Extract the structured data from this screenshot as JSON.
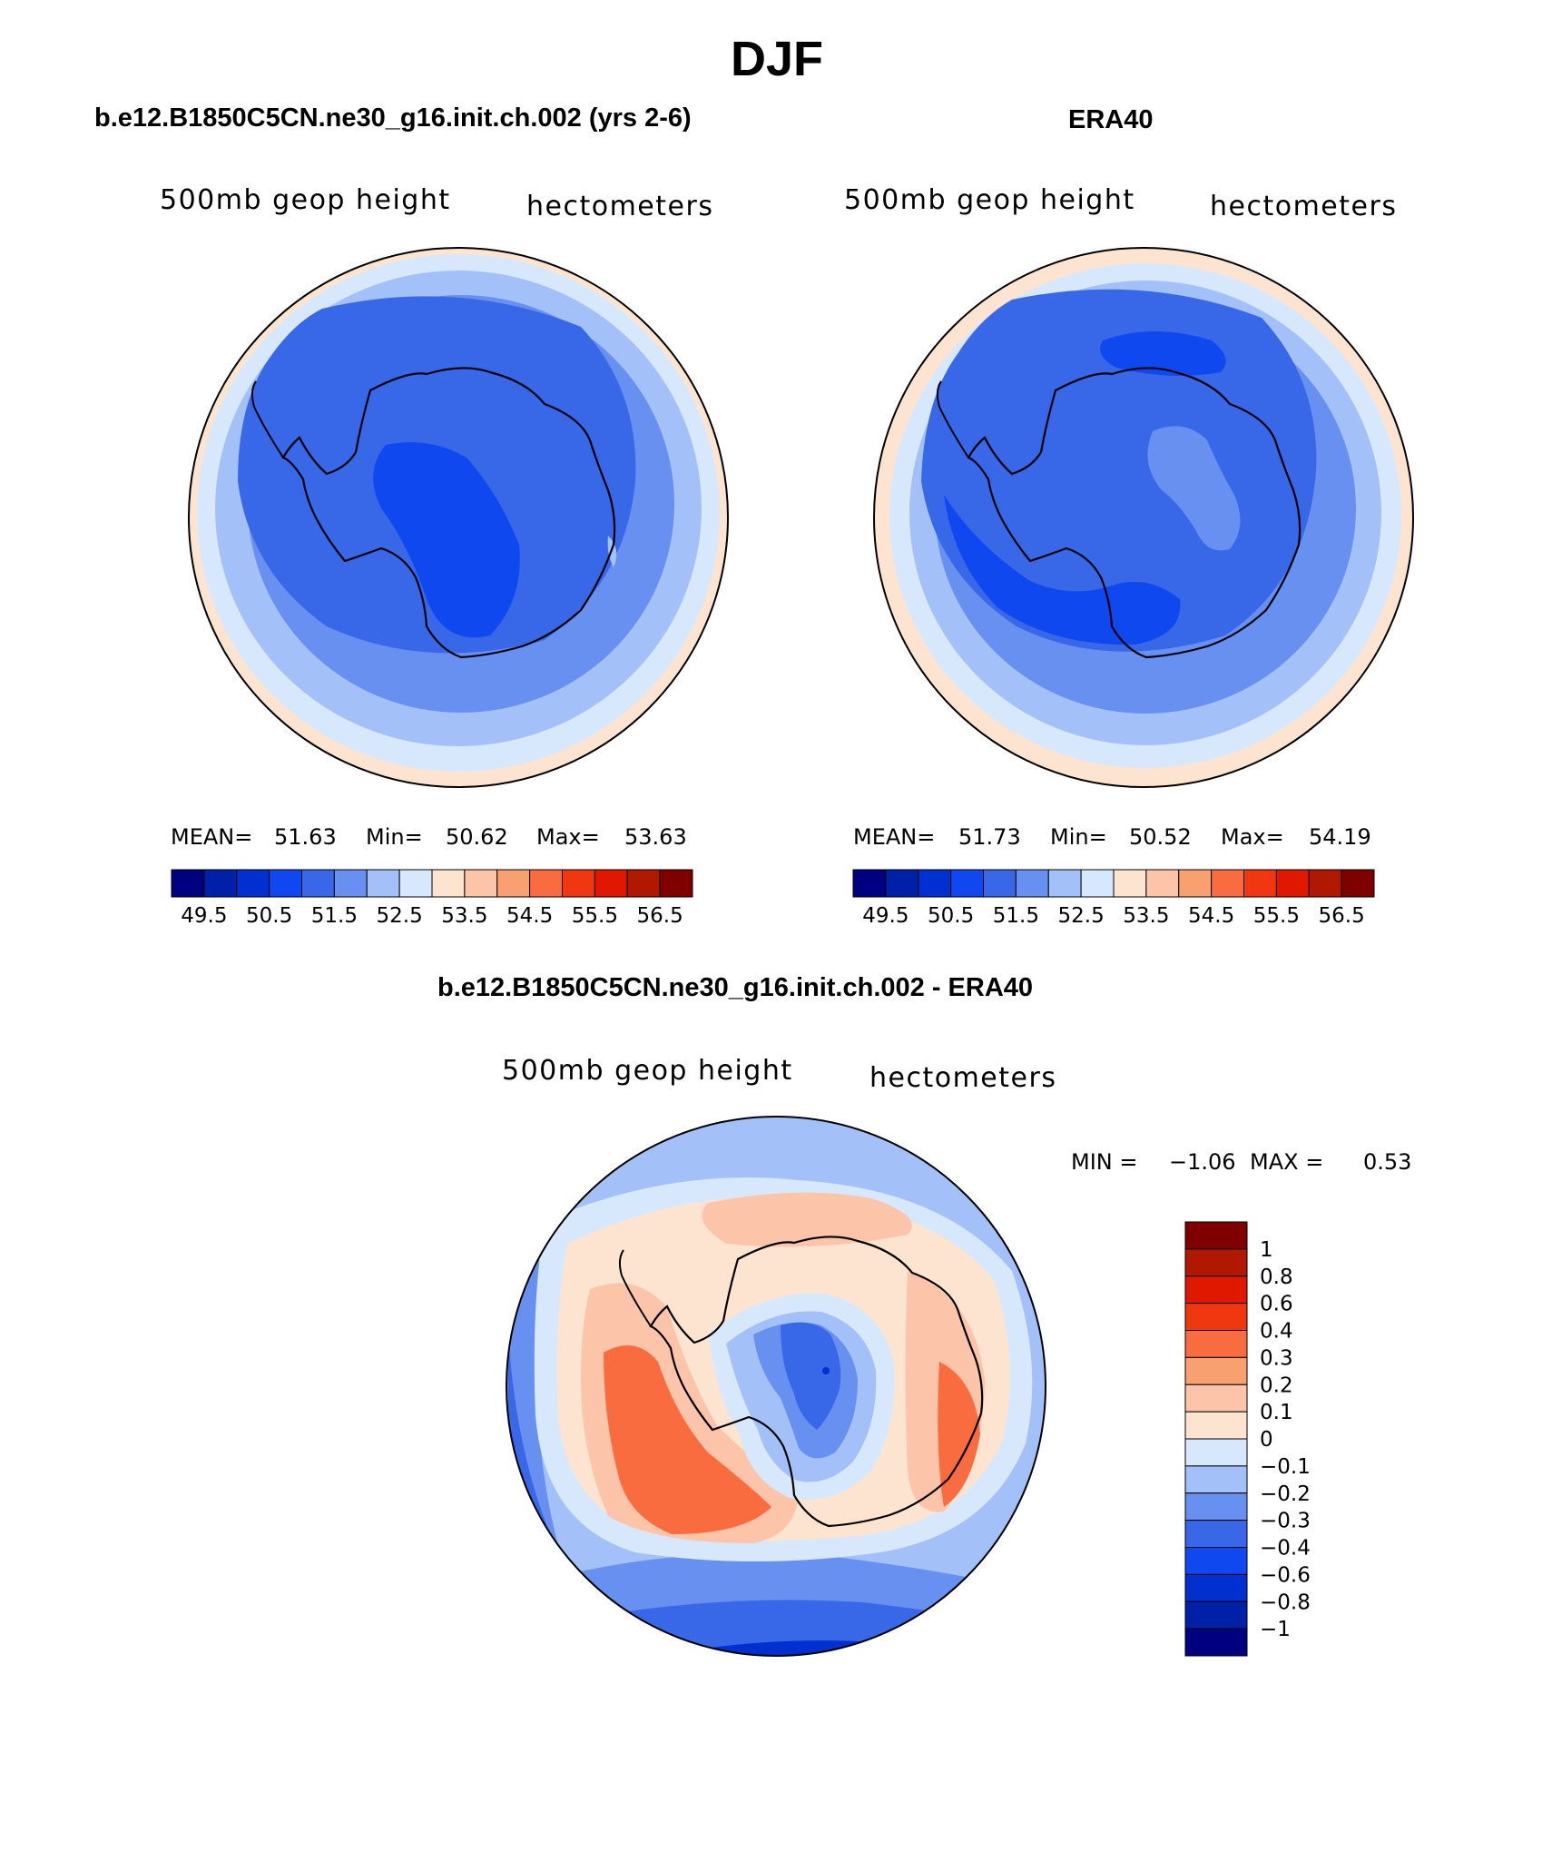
{
  "figure": {
    "title": "DJF"
  },
  "colors": {
    "abs": [
      "#000080",
      "#0020a8",
      "#0030d0",
      "#1048f0",
      "#3868e8",
      "#6890f0",
      "#a4c0f8",
      "#d8e8fc",
      "#fce4d0",
      "#fcc4a8",
      "#f8a070",
      "#f86c40",
      "#f03810",
      "#e01800",
      "#b01800",
      "#800000"
    ],
    "diff": [
      "#000080",
      "#0020a8",
      "#0030d0",
      "#1048f0",
      "#3868e8",
      "#6890f0",
      "#a4c0f8",
      "#d8e8fc",
      "#fce4d0",
      "#fcc4a8",
      "#f8a070",
      "#f86c40",
      "#f03810",
      "#e01800",
      "#b01800",
      "#800000"
    ],
    "coastline": "#000000"
  },
  "panels": [
    {
      "header": "b.e12.B1850C5CN.ne30_g16.init.ch.002 (yrs 2-6)",
      "variable": "500mb geop height",
      "units": "hectometers",
      "stats": {
        "mean_label": "MEAN=",
        "mean": "51.63",
        "min_label": "Min=",
        "min": "50.62",
        "max_label": "Max=",
        "max": "53.63"
      },
      "colorbar_labels": [
        "49.5",
        "50.5",
        "51.5",
        "52.5",
        "53.5",
        "54.5",
        "55.5",
        "56.5"
      ]
    },
    {
      "header": "ERA40",
      "variable": "500mb geop height",
      "units": "hectometers",
      "stats": {
        "mean_label": "MEAN=",
        "mean": "51.73",
        "min_label": "Min=",
        "min": "50.52",
        "max_label": "Max=",
        "max": "54.19"
      },
      "colorbar_labels": [
        "49.5",
        "50.5",
        "51.5",
        "52.5",
        "53.5",
        "54.5",
        "55.5",
        "56.5"
      ]
    }
  ],
  "difference": {
    "header": "b.e12.B1850C5CN.ne30_g16.init.ch.002 - ERA40",
    "variable": "500mb geop height",
    "units": "hectometers",
    "min_label": "MIN =",
    "min": "−1.06",
    "max_label": "MAX =",
    "max": "0.53",
    "colorbar_labels": [
      "1",
      "0.8",
      "0.6",
      "0.4",
      "0.3",
      "0.2",
      "0.1",
      "0",
      "−0.1",
      "−0.2",
      "−0.3",
      "−0.4",
      "−0.6",
      "−0.8",
      "−1"
    ]
  }
}
